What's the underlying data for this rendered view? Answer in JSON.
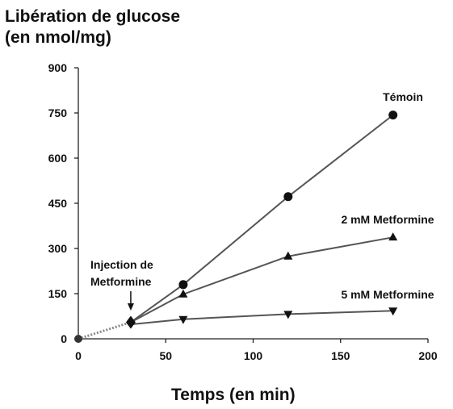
{
  "chart_data": {
    "type": "line",
    "ylabel": [
      "Libération de  glucose",
      "(en nmol/mg)"
    ],
    "xlabel": "Temps (en min)",
    "xlim": [
      0,
      200
    ],
    "ylim": [
      0,
      900
    ],
    "xticks": [
      0,
      50,
      100,
      150,
      200
    ],
    "yticks": [
      0,
      150,
      300,
      450,
      600,
      750,
      900
    ],
    "grid": false,
    "baseline": {
      "x": [
        0,
        30
      ],
      "y": [
        0,
        55
      ],
      "style": "dotted"
    },
    "series": [
      {
        "name": "Témoin",
        "marker": "circle",
        "x": [
          30,
          60,
          120,
          180
        ],
        "y": [
          55,
          180,
          472,
          743
        ]
      },
      {
        "name": "2 mM Metformine",
        "marker": "triangle-up",
        "x": [
          30,
          60,
          120,
          180
        ],
        "y": [
          55,
          148,
          274,
          337
        ]
      },
      {
        "name": "5 mM Metformine",
        "marker": "triangle-down",
        "x": [
          30,
          60,
          120,
          180
        ],
        "y": [
          48,
          65,
          82,
          93
        ]
      }
    ],
    "annotation": {
      "text": [
        "Injection de",
        "Metformine"
      ],
      "x": 30,
      "y": 55
    }
  }
}
